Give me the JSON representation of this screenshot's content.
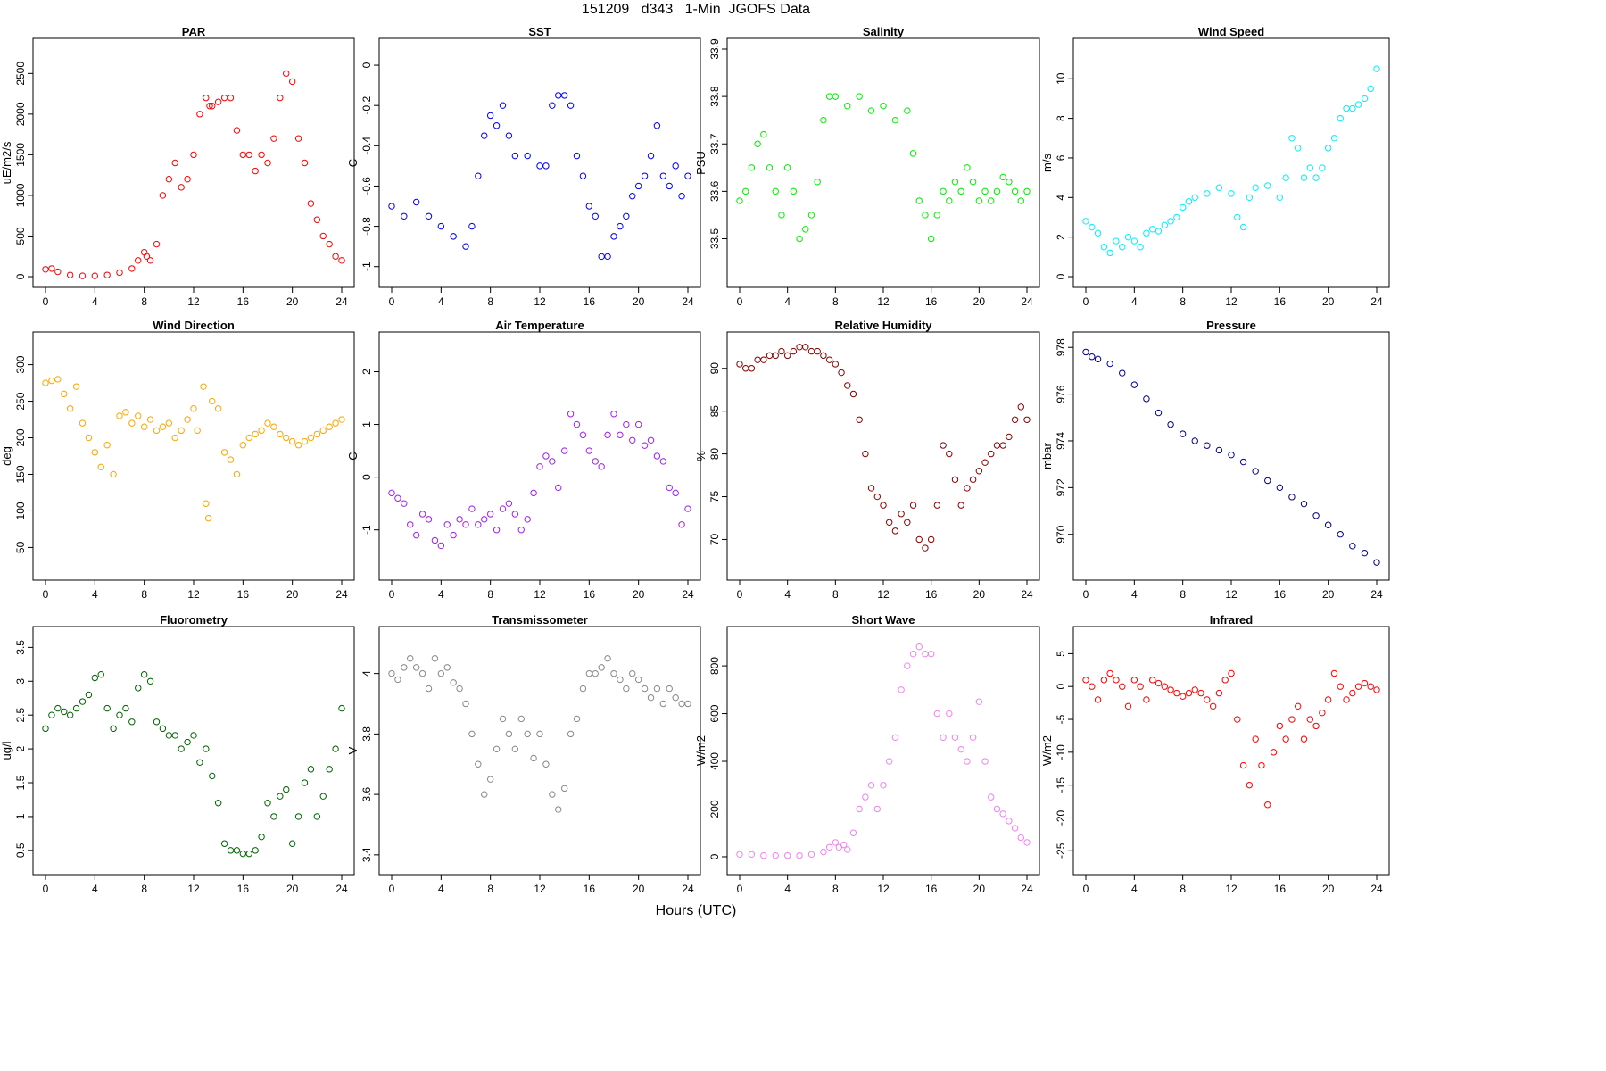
{
  "figure": {
    "title": "151209   d343   1-Min  JGOFS Data",
    "xlabel": "Hours (UTC)"
  },
  "chart_data": [
    {
      "type": "scatter",
      "title": "PAR",
      "ylabel": "uE/m2/s",
      "color": "#ff0000",
      "xlim": [
        0,
        24
      ],
      "ylim": [
        0,
        2800
      ],
      "xticks": [
        0,
        4,
        8,
        12,
        16,
        20,
        24
      ],
      "yticks": [
        0,
        500,
        1000,
        1500,
        2000,
        2500
      ],
      "x": [
        0,
        0.5,
        1,
        2,
        3,
        4,
        5,
        6,
        7,
        7.5,
        8,
        8.2,
        8.5,
        9,
        9.5,
        10,
        10.5,
        11,
        11.5,
        12,
        12.5,
        13,
        13.3,
        13.5,
        14,
        14.5,
        15,
        15.5,
        16,
        16.5,
        17,
        17.5,
        18,
        18.5,
        19,
        19.5,
        20,
        20.5,
        21,
        21.5,
        22,
        22.5,
        23,
        23.5,
        24
      ],
      "y": [
        90,
        100,
        60,
        20,
        10,
        10,
        20,
        50,
        100,
        200,
        300,
        250,
        200,
        400,
        1000,
        1200,
        1400,
        1100,
        1200,
        1500,
        2000,
        2200,
        2100,
        2100,
        2150,
        2200,
        2200,
        1800,
        1500,
        1500,
        1300,
        1500,
        1400,
        1700,
        2200,
        2500,
        2400,
        1700,
        1400,
        900,
        700,
        500,
        400,
        250,
        200
      ]
    },
    {
      "type": "scatter",
      "title": "SST",
      "ylabel": "C",
      "color": "#0000ff",
      "xlim": [
        0,
        24
      ],
      "ylim": [
        -1.05,
        0.08
      ],
      "xticks": [
        0,
        4,
        8,
        12,
        16,
        20,
        24
      ],
      "yticks": [
        -1.0,
        -0.8,
        -0.6,
        -0.4,
        -0.2,
        0.0
      ],
      "x": [
        0,
        1,
        2,
        3,
        4,
        5,
        6,
        6.5,
        7,
        7.5,
        8,
        8.5,
        9,
        9.5,
        10,
        11,
        12,
        12.5,
        13,
        13.5,
        14,
        14.5,
        15,
        15.5,
        16,
        16.5,
        17,
        17.5,
        18,
        18.5,
        19,
        19.5,
        20,
        20.5,
        21,
        21.5,
        22,
        22.5,
        23,
        23.5,
        24
      ],
      "y": [
        -0.7,
        -0.75,
        -0.68,
        -0.75,
        -0.8,
        -0.85,
        -0.9,
        -0.8,
        -0.55,
        -0.35,
        -0.25,
        -0.3,
        -0.2,
        -0.35,
        -0.45,
        -0.45,
        -0.5,
        -0.5,
        -0.2,
        -0.15,
        -0.15,
        -0.2,
        -0.45,
        -0.55,
        -0.7,
        -0.75,
        -0.95,
        -0.95,
        -0.85,
        -0.8,
        -0.75,
        -0.65,
        -0.6,
        -0.55,
        -0.45,
        -0.3,
        -0.55,
        -0.6,
        -0.5,
        -0.65,
        -0.55
      ]
    },
    {
      "type": "scatter",
      "title": "Salinity",
      "ylabel": "PSU",
      "color": "#00ee00",
      "xlim": [
        0,
        24
      ],
      "ylim": [
        33.42,
        33.9
      ],
      "xticks": [
        0,
        4,
        8,
        12,
        16,
        20,
        24
      ],
      "yticks": [
        33.5,
        33.6,
        33.7,
        33.8,
        33.9
      ],
      "x": [
        0,
        0.5,
        1,
        1.5,
        2,
        2.5,
        3,
        3.5,
        4,
        4.5,
        5,
        5.5,
        6,
        6.5,
        7,
        7.5,
        8,
        9,
        10,
        11,
        12,
        13,
        14,
        14.5,
        15,
        15.5,
        16,
        16.5,
        17,
        17.5,
        18,
        18.5,
        19,
        19.5,
        20,
        20.5,
        21,
        21.5,
        22,
        22.5,
        23,
        23.5,
        24
      ],
      "y": [
        33.58,
        33.6,
        33.65,
        33.7,
        33.72,
        33.65,
        33.6,
        33.55,
        33.65,
        33.6,
        33.5,
        33.52,
        33.55,
        33.62,
        33.75,
        33.8,
        33.8,
        33.78,
        33.8,
        33.77,
        33.78,
        33.75,
        33.77,
        33.68,
        33.58,
        33.55,
        33.5,
        33.55,
        33.6,
        33.58,
        33.62,
        33.6,
        33.65,
        33.62,
        33.58,
        33.6,
        33.58,
        33.6,
        33.63,
        33.62,
        33.6,
        33.58,
        33.6
      ]
    },
    {
      "type": "scatter",
      "title": "Wind Speed",
      "ylabel": "m/s",
      "color": "#00eeff",
      "xlim": [
        0,
        24
      ],
      "ylim": [
        0,
        11.5
      ],
      "xticks": [
        0,
        4,
        8,
        12,
        16,
        20,
        24
      ],
      "yticks": [
        0,
        2,
        4,
        6,
        8,
        10
      ],
      "x": [
        0,
        0.5,
        1,
        1.5,
        2,
        2.5,
        3,
        3.5,
        4,
        4.5,
        5,
        5.5,
        6,
        6.5,
        7,
        7.5,
        8,
        8.5,
        9,
        10,
        11,
        12,
        12.5,
        13,
        13.5,
        14,
        15,
        16,
        16.5,
        17,
        17.5,
        18,
        18.5,
        19,
        19.5,
        20,
        20.5,
        21,
        21.5,
        22,
        22.5,
        23,
        23.5,
        24
      ],
      "y": [
        2.8,
        2.5,
        2.2,
        1.5,
        1.2,
        1.8,
        1.5,
        2,
        1.8,
        1.5,
        2.2,
        2.4,
        2.3,
        2.6,
        2.8,
        3,
        3.5,
        3.8,
        4,
        4.2,
        4.5,
        4.2,
        3,
        2.5,
        4,
        4.5,
        4.6,
        4,
        5,
        7,
        6.5,
        5,
        5.5,
        5,
        5.5,
        6.5,
        7,
        8,
        8.5,
        8.5,
        8.7,
        9,
        9.5,
        10.5
      ]
    },
    {
      "type": "scatter",
      "title": "Wind Direction",
      "ylabel": "deg",
      "color": "#ffa500",
      "xlim": [
        0,
        24
      ],
      "ylim": [
        20,
        330
      ],
      "xticks": [
        0,
        4,
        8,
        12,
        16,
        20,
        24
      ],
      "yticks": [
        50,
        100,
        150,
        200,
        250,
        300
      ],
      "x": [
        0,
        0.5,
        1,
        1.5,
        2,
        2.5,
        3,
        3.5,
        4,
        4.5,
        5,
        5.5,
        6,
        6.5,
        7,
        7.5,
        8,
        8.5,
        9,
        9.5,
        10,
        10.5,
        11,
        11.5,
        12,
        12.3,
        12.8,
        13,
        13.2,
        13.5,
        14,
        14.5,
        15,
        15.5,
        16,
        16.5,
        17,
        17.5,
        18,
        18.5,
        19,
        19.5,
        20,
        20.5,
        21,
        21.5,
        22,
        22.5,
        23,
        23.5,
        24
      ],
      "y": [
        275,
        278,
        280,
        260,
        240,
        270,
        220,
        200,
        180,
        160,
        190,
        150,
        230,
        235,
        220,
        230,
        215,
        225,
        210,
        215,
        220,
        200,
        210,
        225,
        240,
        210,
        270,
        110,
        90,
        250,
        240,
        180,
        170,
        150,
        190,
        200,
        205,
        210,
        220,
        215,
        205,
        200,
        195,
        190,
        195,
        200,
        205,
        210,
        215,
        220,
        225
      ]
    },
    {
      "type": "scatter",
      "title": "Air Temperature",
      "ylabel": "C",
      "color": "#a020f0",
      "xlim": [
        0,
        24
      ],
      "ylim": [
        -1.75,
        2.55
      ],
      "xticks": [
        0,
        4,
        8,
        12,
        16,
        20,
        24
      ],
      "yticks": [
        -1,
        0,
        1,
        2
      ],
      "x": [
        0,
        0.5,
        1,
        1.5,
        2,
        2.5,
        3,
        3.5,
        4,
        4.5,
        5,
        5.5,
        6,
        6.5,
        7,
        7.5,
        8,
        8.5,
        9,
        9.5,
        10,
        10.5,
        11,
        11.5,
        12,
        12.5,
        13,
        13.5,
        14,
        14.5,
        15,
        15.5,
        16,
        16.5,
        17,
        17.5,
        18,
        18.5,
        19,
        19.5,
        20,
        20.5,
        21,
        21.5,
        22,
        22.5,
        23,
        23.5,
        24
      ],
      "y": [
        -0.3,
        -0.4,
        -0.5,
        -0.9,
        -1.1,
        -0.7,
        -0.8,
        -1.2,
        -1.3,
        -0.9,
        -1.1,
        -0.8,
        -0.9,
        -0.6,
        -0.9,
        -0.8,
        -0.7,
        -1.0,
        -0.6,
        -0.5,
        -0.7,
        -1.0,
        -0.8,
        -0.3,
        0.2,
        0.4,
        0.3,
        -0.2,
        0.5,
        1.2,
        1.0,
        0.8,
        0.5,
        0.3,
        0.2,
        0.8,
        1.2,
        0.8,
        1.0,
        0.7,
        1.0,
        0.6,
        0.7,
        0.4,
        0.3,
        -0.2,
        -0.3,
        -0.9,
        -0.6
      ]
    },
    {
      "type": "scatter",
      "title": "Relative Humidity",
      "ylabel": "%",
      "color": "#8b0000",
      "xlim": [
        0,
        24
      ],
      "ylim": [
        66.5,
        93
      ],
      "xticks": [
        0,
        4,
        8,
        12,
        16,
        20,
        24
      ],
      "yticks": [
        70,
        75,
        80,
        85,
        90
      ],
      "x": [
        0,
        0.5,
        1,
        1.5,
        2,
        2.5,
        3,
        3.5,
        4,
        4.5,
        5,
        5.5,
        6,
        6.5,
        7,
        7.5,
        8,
        8.5,
        9,
        9.5,
        10,
        10.5,
        11,
        11.5,
        12,
        12.5,
        13,
        13.5,
        14,
        14.5,
        15,
        15.5,
        16,
        16.5,
        17,
        17.5,
        18,
        18.5,
        19,
        19.5,
        20,
        20.5,
        21,
        21.5,
        22,
        22.5,
        23,
        23.5,
        24
      ],
      "y": [
        90.5,
        90,
        90,
        91,
        91,
        91.5,
        91.5,
        92,
        91.5,
        92,
        92.5,
        92.5,
        92,
        92,
        91.5,
        91,
        90.5,
        89.5,
        88,
        87,
        84,
        80,
        76,
        75,
        74,
        72,
        71,
        73,
        72,
        74,
        70,
        69,
        70,
        74,
        81,
        80,
        77,
        74,
        76,
        77,
        78,
        79,
        80,
        81,
        81,
        82,
        84,
        85.5,
        84
      ]
    },
    {
      "type": "scatter",
      "title": "Pressure",
      "ylabel": "mbar",
      "color": "#00008b",
      "xlim": [
        0,
        24
      ],
      "ylim": [
        968.5,
        978.2
      ],
      "xticks": [
        0,
        4,
        8,
        12,
        16,
        20,
        24
      ],
      "yticks": [
        970,
        972,
        974,
        976,
        978
      ],
      "x": [
        0,
        0.5,
        1,
        2,
        3,
        4,
        5,
        6,
        7,
        8,
        9,
        10,
        11,
        12,
        13,
        14,
        15,
        16,
        17,
        18,
        19,
        20,
        21,
        22,
        23,
        24
      ],
      "y": [
        977.8,
        977.6,
        977.5,
        977.3,
        976.9,
        976.4,
        975.8,
        975.2,
        974.7,
        974.3,
        974,
        973.8,
        973.6,
        973.4,
        973.1,
        972.7,
        972.3,
        972,
        971.6,
        971.3,
        970.8,
        970.4,
        970,
        969.5,
        969.2,
        968.8
      ]
    },
    {
      "type": "scatter",
      "title": "Fluorometry",
      "ylabel": "ug/l",
      "color": "#006400",
      "xlim": [
        0,
        24
      ],
      "ylim": [
        0.3,
        3.65
      ],
      "xticks": [
        0,
        4,
        8,
        12,
        16,
        20,
        24
      ],
      "yticks": [
        0.5,
        1.0,
        1.5,
        2.0,
        2.5,
        3.0,
        3.5
      ],
      "x": [
        0,
        0.5,
        1,
        1.5,
        2,
        2.5,
        3,
        3.5,
        4,
        4.5,
        5,
        5.5,
        6,
        6.5,
        7,
        7.5,
        8,
        8.5,
        9,
        9.5,
        10,
        10.5,
        11,
        11.5,
        12,
        12.5,
        13,
        13.5,
        14,
        14.5,
        15,
        15.5,
        16,
        16.5,
        17,
        17.5,
        18,
        18.5,
        19,
        19.5,
        20,
        20.5,
        21,
        21.5,
        22,
        22.5,
        23,
        23.5,
        24
      ],
      "y": [
        2.3,
        2.5,
        2.6,
        2.55,
        2.5,
        2.6,
        2.7,
        2.8,
        3.05,
        3.1,
        2.6,
        2.3,
        2.5,
        2.6,
        2.4,
        2.9,
        3.1,
        3.0,
        2.4,
        2.3,
        2.2,
        2.2,
        2.0,
        2.1,
        2.2,
        1.8,
        2.0,
        1.6,
        1.2,
        0.6,
        0.5,
        0.5,
        0.45,
        0.45,
        0.5,
        0.7,
        1.2,
        1.0,
        1.3,
        1.4,
        0.6,
        1.0,
        1.5,
        1.7,
        1.0,
        1.3,
        1.7,
        2.0,
        2.6
      ]
    },
    {
      "type": "scatter",
      "title": "Transmissometer",
      "ylabel": "V",
      "color": "#888888",
      "xlim": [
        0,
        24
      ],
      "ylim": [
        3.37,
        4.12
      ],
      "xticks": [
        0,
        4,
        8,
        12,
        16,
        20,
        24
      ],
      "yticks": [
        3.4,
        3.6,
        3.8,
        4.0
      ],
      "x": [
        0,
        0.5,
        1,
        1.5,
        2,
        2.5,
        3,
        3.5,
        4,
        4.5,
        5,
        5.5,
        6,
        6.5,
        7,
        7.5,
        8,
        8.5,
        9,
        9.5,
        10,
        10.5,
        11,
        11.5,
        12,
        12.5,
        13,
        13.5,
        14,
        14.5,
        15,
        15.5,
        16,
        16.5,
        17,
        17.5,
        18,
        18.5,
        19,
        19.5,
        20,
        20.5,
        21,
        21.5,
        22,
        22.5,
        23,
        23.5,
        24
      ],
      "y": [
        4.0,
        3.98,
        4.02,
        4.05,
        4.02,
        4.0,
        3.95,
        4.05,
        4.0,
        4.02,
        3.97,
        3.95,
        3.9,
        3.8,
        3.7,
        3.6,
        3.65,
        3.75,
        3.85,
        3.8,
        3.75,
        3.85,
        3.8,
        3.72,
        3.8,
        3.7,
        3.6,
        3.55,
        3.62,
        3.8,
        3.85,
        3.95,
        4.0,
        4.0,
        4.02,
        4.05,
        4.0,
        3.98,
        3.95,
        4.0,
        3.98,
        3.95,
        3.92,
        3.95,
        3.9,
        3.95,
        3.92,
        3.9,
        3.9
      ]
    },
    {
      "type": "scatter",
      "title": "Short Wave",
      "ylabel": "W/m2",
      "color": "#ee82ee",
      "xlim": [
        0,
        24
      ],
      "ylim": [
        -30,
        920
      ],
      "xticks": [
        0,
        4,
        8,
        12,
        16,
        20,
        24
      ],
      "yticks": [
        0,
        200,
        400,
        600,
        800
      ],
      "x": [
        0,
        1,
        2,
        3,
        4,
        5,
        6,
        7,
        7.5,
        8,
        8.3,
        8.7,
        9,
        9.5,
        10,
        10.5,
        11,
        11.5,
        12,
        12.5,
        13,
        13.5,
        14,
        14.5,
        15,
        15.5,
        16,
        16.5,
        17,
        17.5,
        18,
        18.5,
        19,
        19.5,
        20,
        20.5,
        21,
        21.5,
        22,
        22.5,
        23,
        23.5,
        24
      ],
      "y": [
        10,
        10,
        5,
        5,
        5,
        5,
        10,
        20,
        40,
        60,
        40,
        50,
        30,
        100,
        200,
        250,
        300,
        200,
        300,
        400,
        500,
        700,
        800,
        850,
        880,
        850,
        850,
        600,
        500,
        600,
        500,
        450,
        400,
        500,
        650,
        400,
        250,
        200,
        180,
        150,
        120,
        80,
        60
      ]
    },
    {
      "type": "scatter",
      "title": "Infrared",
      "ylabel": "W/m2",
      "color": "#ff0000",
      "xlim": [
        0,
        24
      ],
      "ylim": [
        -27,
        7.5
      ],
      "xticks": [
        0,
        4,
        8,
        12,
        16,
        20,
        24
      ],
      "yticks": [
        -25,
        -20,
        -15,
        -10,
        -5,
        0,
        5
      ],
      "x": [
        0,
        0.5,
        1,
        1.5,
        2,
        2.5,
        3,
        3.5,
        4,
        4.5,
        5,
        5.5,
        6,
        6.5,
        7,
        7.5,
        8,
        8.5,
        9,
        9.5,
        10,
        10.5,
        11,
        11.5,
        12,
        12.5,
        13,
        13.5,
        14,
        14.5,
        15,
        15.5,
        16,
        16.5,
        17,
        17.5,
        18,
        18.5,
        19,
        19.5,
        20,
        20.5,
        21,
        21.5,
        22,
        22.5,
        23,
        23.5,
        24
      ],
      "y": [
        1,
        0,
        -2,
        1,
        2,
        1,
        0,
        -3,
        1,
        0,
        -2,
        1,
        0.5,
        0,
        -0.5,
        -1,
        -1.5,
        -1,
        -0.5,
        -1,
        -2,
        -3,
        -1,
        1,
        2,
        -5,
        -12,
        -15,
        -8,
        -12,
        -18,
        -10,
        -6,
        -8,
        -5,
        -3,
        -8,
        -5,
        -6,
        -4,
        -2,
        2,
        0,
        -2,
        -1,
        0,
        0.5,
        0,
        -0.5
      ]
    }
  ]
}
